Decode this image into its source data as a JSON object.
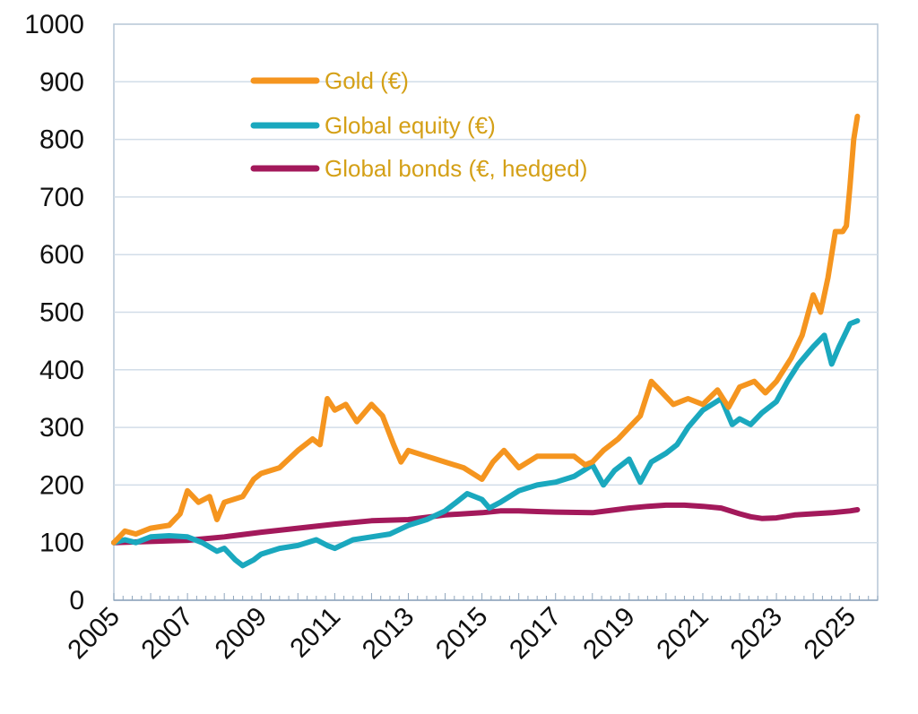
{
  "chart_data": {
    "type": "line",
    "title": "",
    "xlabel": "",
    "ylabel": "",
    "xlim": [
      2005,
      2026
    ],
    "ylim": [
      0,
      1000
    ],
    "yticks": [
      0,
      100,
      200,
      300,
      400,
      500,
      600,
      700,
      800,
      900,
      1000
    ],
    "ytick_labels": [
      "0",
      "100",
      "200",
      "300",
      "400",
      "500",
      "600",
      "700",
      "800",
      "900",
      "1000"
    ],
    "xticks": [
      2005,
      2007,
      2009,
      2011,
      2013,
      2015,
      2017,
      2019,
      2021,
      2023,
      2025
    ],
    "xtick_labels": [
      "2005",
      "2007",
      "2009",
      "2011",
      "2013",
      "2015",
      "2017",
      "2019",
      "2021",
      "2023",
      "2025"
    ],
    "grid": true,
    "legend_position": "top-left",
    "legend_text_color": "#D4A017",
    "series": [
      {
        "name": "Gold (€)",
        "color": "#F5951F",
        "points": [
          [
            2005.0,
            100
          ],
          [
            2005.3,
            120
          ],
          [
            2005.6,
            115
          ],
          [
            2006.0,
            125
          ],
          [
            2006.5,
            130
          ],
          [
            2006.8,
            150
          ],
          [
            2007.0,
            190
          ],
          [
            2007.3,
            170
          ],
          [
            2007.6,
            180
          ],
          [
            2007.8,
            140
          ],
          [
            2008.0,
            170
          ],
          [
            2008.5,
            180
          ],
          [
            2008.8,
            210
          ],
          [
            2009.0,
            220
          ],
          [
            2009.5,
            230
          ],
          [
            2010.0,
            260
          ],
          [
            2010.4,
            280
          ],
          [
            2010.6,
            270
          ],
          [
            2010.8,
            350
          ],
          [
            2011.0,
            330
          ],
          [
            2011.3,
            340
          ],
          [
            2011.6,
            310
          ],
          [
            2012.0,
            340
          ],
          [
            2012.3,
            320
          ],
          [
            2012.6,
            270
          ],
          [
            2012.8,
            240
          ],
          [
            2013.0,
            260
          ],
          [
            2013.5,
            250
          ],
          [
            2014.0,
            240
          ],
          [
            2014.5,
            230
          ],
          [
            2015.0,
            210
          ],
          [
            2015.3,
            240
          ],
          [
            2015.6,
            260
          ],
          [
            2016.0,
            230
          ],
          [
            2016.5,
            250
          ],
          [
            2017.0,
            250
          ],
          [
            2017.5,
            250
          ],
          [
            2017.8,
            235
          ],
          [
            2018.0,
            240
          ],
          [
            2018.3,
            260
          ],
          [
            2018.7,
            280
          ],
          [
            2019.0,
            300
          ],
          [
            2019.3,
            320
          ],
          [
            2019.6,
            380
          ],
          [
            2019.9,
            360
          ],
          [
            2020.2,
            340
          ],
          [
            2020.6,
            350
          ],
          [
            2021.0,
            340
          ],
          [
            2021.4,
            365
          ],
          [
            2021.7,
            335
          ],
          [
            2022.0,
            370
          ],
          [
            2022.4,
            380
          ],
          [
            2022.7,
            360
          ],
          [
            2023.0,
            380
          ],
          [
            2023.4,
            420
          ],
          [
            2023.7,
            460
          ],
          [
            2024.0,
            530
          ],
          [
            2024.2,
            500
          ],
          [
            2024.4,
            560
          ],
          [
            2024.6,
            640
          ],
          [
            2024.8,
            640
          ],
          [
            2024.9,
            650
          ],
          [
            2025.0,
            720
          ],
          [
            2025.1,
            800
          ],
          [
            2025.2,
            840
          ]
        ]
      },
      {
        "name": "Global equity (€)",
        "color": "#1AA8BE",
        "points": [
          [
            2005.0,
            100
          ],
          [
            2005.3,
            105
          ],
          [
            2005.6,
            100
          ],
          [
            2006.0,
            110
          ],
          [
            2006.5,
            112
          ],
          [
            2007.0,
            110
          ],
          [
            2007.4,
            100
          ],
          [
            2007.8,
            85
          ],
          [
            2008.0,
            90
          ],
          [
            2008.3,
            70
          ],
          [
            2008.5,
            60
          ],
          [
            2008.8,
            70
          ],
          [
            2009.0,
            80
          ],
          [
            2009.5,
            90
          ],
          [
            2010.0,
            95
          ],
          [
            2010.5,
            105
          ],
          [
            2010.8,
            95
          ],
          [
            2011.0,
            90
          ],
          [
            2011.5,
            105
          ],
          [
            2012.0,
            110
          ],
          [
            2012.5,
            115
          ],
          [
            2013.0,
            130
          ],
          [
            2013.5,
            140
          ],
          [
            2014.0,
            155
          ],
          [
            2014.3,
            170
          ],
          [
            2014.6,
            185
          ],
          [
            2015.0,
            175
          ],
          [
            2015.2,
            160
          ],
          [
            2015.5,
            170
          ],
          [
            2016.0,
            190
          ],
          [
            2016.5,
            200
          ],
          [
            2017.0,
            205
          ],
          [
            2017.5,
            215
          ],
          [
            2018.0,
            235
          ],
          [
            2018.3,
            200
          ],
          [
            2018.6,
            225
          ],
          [
            2019.0,
            245
          ],
          [
            2019.3,
            205
          ],
          [
            2019.6,
            240
          ],
          [
            2020.0,
            255
          ],
          [
            2020.3,
            270
          ],
          [
            2020.6,
            300
          ],
          [
            2021.0,
            330
          ],
          [
            2021.5,
            350
          ],
          [
            2021.8,
            305
          ],
          [
            2022.0,
            315
          ],
          [
            2022.3,
            305
          ],
          [
            2022.6,
            325
          ],
          [
            2023.0,
            345
          ],
          [
            2023.3,
            380
          ],
          [
            2023.6,
            410
          ],
          [
            2024.0,
            440
          ],
          [
            2024.3,
            460
          ],
          [
            2024.5,
            410
          ],
          [
            2024.7,
            440
          ],
          [
            2025.0,
            480
          ],
          [
            2025.2,
            485
          ]
        ]
      },
      {
        "name": "Global bonds (€, hedged)",
        "color": "#A3195B",
        "points": [
          [
            2005.0,
            100
          ],
          [
            2006.0,
            102
          ],
          [
            2007.0,
            104
          ],
          [
            2008.0,
            110
          ],
          [
            2009.0,
            118
          ],
          [
            2010.0,
            125
          ],
          [
            2011.0,
            132
          ],
          [
            2012.0,
            138
          ],
          [
            2013.0,
            140
          ],
          [
            2014.0,
            148
          ],
          [
            2015.0,
            152
          ],
          [
            2015.5,
            155
          ],
          [
            2016.0,
            155
          ],
          [
            2016.5,
            154
          ],
          [
            2017.0,
            153
          ],
          [
            2018.0,
            152
          ],
          [
            2019.0,
            160
          ],
          [
            2019.5,
            163
          ],
          [
            2020.0,
            165
          ],
          [
            2020.5,
            165
          ],
          [
            2021.0,
            163
          ],
          [
            2021.5,
            160
          ],
          [
            2022.0,
            150
          ],
          [
            2022.3,
            145
          ],
          [
            2022.6,
            142
          ],
          [
            2023.0,
            143
          ],
          [
            2023.5,
            148
          ],
          [
            2024.0,
            150
          ],
          [
            2024.5,
            152
          ],
          [
            2025.0,
            155
          ],
          [
            2025.2,
            157
          ]
        ]
      }
    ]
  }
}
